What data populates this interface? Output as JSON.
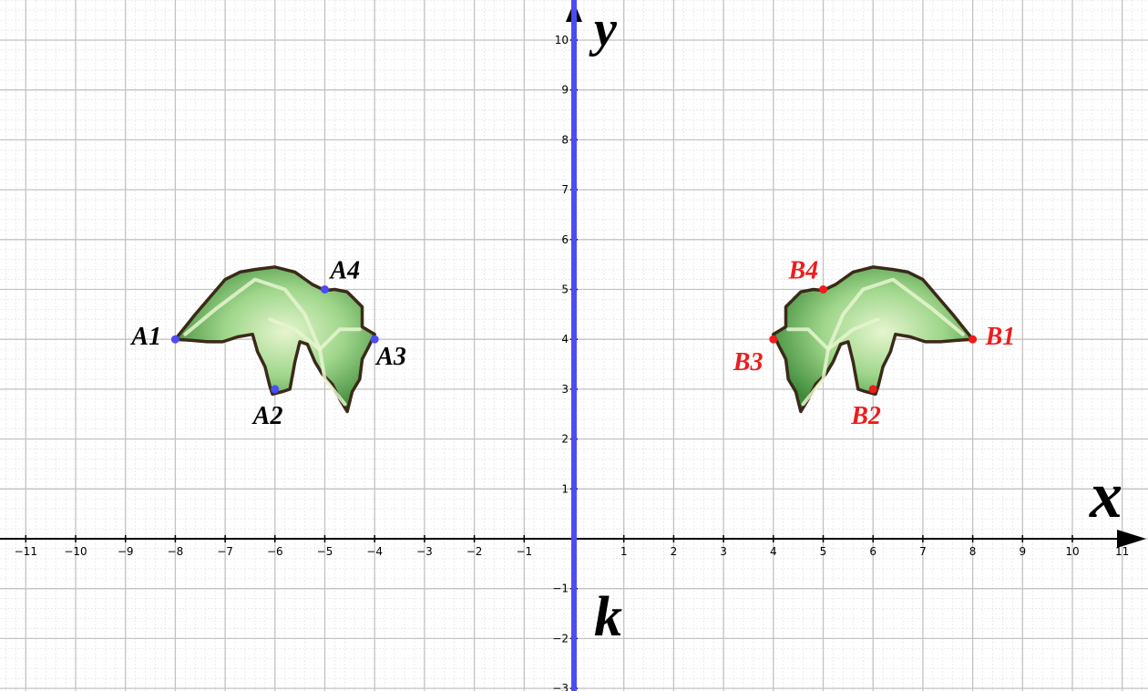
{
  "axes": {
    "x_label": "x",
    "y_label": "y",
    "x_range": [
      -11,
      11
    ],
    "y_range": [
      -3,
      10
    ],
    "grid": true
  },
  "mirror_line": {
    "label": "k",
    "x": 0,
    "color": "#4c4cf5"
  },
  "colors": {
    "leaf_fill": "#7cc36e",
    "leaf_light": "#e6f5cf",
    "leaf_outline": "#3a2a18",
    "original_points": "#4c4cf5",
    "image_points": "#ee1c1c",
    "original_labels": "#000000",
    "image_labels": "#ee1c1c"
  },
  "original_points": [
    {
      "label": "A1",
      "x": -8,
      "y": 4
    },
    {
      "label": "A2",
      "x": -6,
      "y": 3
    },
    {
      "label": "A3",
      "x": -4,
      "y": 4
    },
    {
      "label": "A4",
      "x": -5,
      "y": 5
    }
  ],
  "image_points": [
    {
      "label": "B1",
      "x": 8,
      "y": 4
    },
    {
      "label": "B2",
      "x": 6,
      "y": 3
    },
    {
      "label": "B3",
      "x": 4,
      "y": 4
    },
    {
      "label": "B4",
      "x": 5,
      "y": 5
    }
  ]
}
